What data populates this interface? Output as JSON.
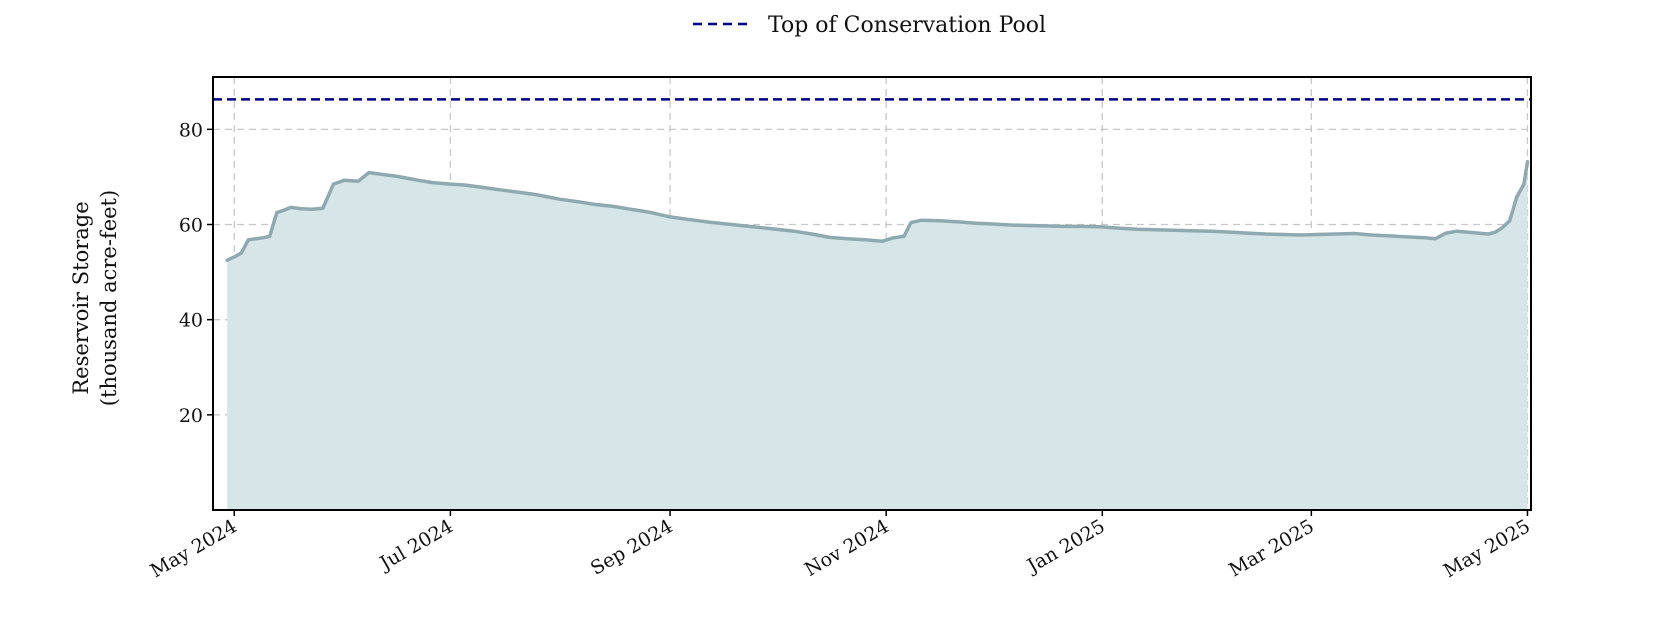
{
  "chart_data": {
    "type": "area",
    "title": "",
    "xlabel": "",
    "ylabel": "Reservoir Storage (thousand acre-feet)",
    "ylabel_lines": [
      "Reservoir Storage",
      "(thousand acre-feet)"
    ],
    "xlim": [
      "2024-04-25",
      "2025-05-02"
    ],
    "ylim": [
      0,
      91
    ],
    "yticks": [
      20,
      40,
      60,
      80
    ],
    "xticks": [
      {
        "date": "2024-05-01",
        "label": "May 2024"
      },
      {
        "date": "2024-07-01",
        "label": "Jul 2024"
      },
      {
        "date": "2024-09-01",
        "label": "Sep 2024"
      },
      {
        "date": "2024-11-01",
        "label": "Nov 2024"
      },
      {
        "date": "2025-01-01",
        "label": "Jan 2025"
      },
      {
        "date": "2025-03-01",
        "label": "Mar 2025"
      },
      {
        "date": "2025-05-01",
        "label": "May 2025"
      }
    ],
    "grid": true,
    "legend_position": "top-center",
    "series": [
      {
        "name": "",
        "type": "area",
        "color": "#8fa9b0",
        "fill_color": "#d6e5e8",
        "x": [
          "2024-04-29",
          "2024-05-01",
          "2024-05-03",
          "2024-05-05",
          "2024-05-07",
          "2024-05-09",
          "2024-05-11",
          "2024-05-13",
          "2024-05-15",
          "2024-05-17",
          "2024-05-20",
          "2024-05-23",
          "2024-05-26",
          "2024-05-29",
          "2024-06-01",
          "2024-06-03",
          "2024-06-05",
          "2024-06-08",
          "2024-06-12",
          "2024-06-16",
          "2024-06-19",
          "2024-06-22",
          "2024-06-26",
          "2024-07-01",
          "2024-07-05",
          "2024-07-10",
          "2024-07-15",
          "2024-07-20",
          "2024-07-25",
          "2024-08-01",
          "2024-08-06",
          "2024-08-11",
          "2024-08-16",
          "2024-08-21",
          "2024-08-26",
          "2024-09-01",
          "2024-09-06",
          "2024-09-11",
          "2024-09-16",
          "2024-09-21",
          "2024-09-26",
          "2024-10-01",
          "2024-10-06",
          "2024-10-11",
          "2024-10-16",
          "2024-10-21",
          "2024-10-26",
          "2024-10-31",
          "2024-11-03",
          "2024-11-06",
          "2024-11-08",
          "2024-11-11",
          "2024-11-16",
          "2024-11-21",
          "2024-11-26",
          "2024-12-01",
          "2024-12-06",
          "2024-12-11",
          "2024-12-16",
          "2024-12-21",
          "2024-12-26",
          "2025-01-01",
          "2025-01-06",
          "2025-01-11",
          "2025-01-16",
          "2025-01-21",
          "2025-01-26",
          "2025-02-01",
          "2025-02-06",
          "2025-02-11",
          "2025-02-16",
          "2025-02-21",
          "2025-02-26",
          "2025-03-03",
          "2025-03-08",
          "2025-03-13",
          "2025-03-18",
          "2025-03-23",
          "2025-03-28",
          "2025-04-02",
          "2025-04-05",
          "2025-04-08",
          "2025-04-11",
          "2025-04-14",
          "2025-04-17",
          "2025-04-20",
          "2025-04-22",
          "2025-04-24",
          "2025-04-26",
          "2025-04-28",
          "2025-04-30",
          "2025-05-01"
        ],
        "values": [
          52.5,
          53.2,
          54.0,
          56.8,
          57.0,
          57.2,
          57.5,
          62.5,
          63.0,
          63.6,
          63.3,
          63.2,
          63.4,
          68.5,
          69.3,
          69.2,
          69.1,
          70.9,
          70.5,
          70.1,
          69.7,
          69.3,
          68.8,
          68.5,
          68.3,
          67.8,
          67.3,
          66.8,
          66.3,
          65.3,
          64.8,
          64.2,
          63.8,
          63.2,
          62.6,
          61.6,
          61.1,
          60.6,
          60.2,
          59.8,
          59.4,
          59.0,
          58.6,
          58.0,
          57.3,
          57.0,
          56.8,
          56.5,
          57.2,
          57.5,
          60.4,
          60.9,
          60.8,
          60.6,
          60.3,
          60.1,
          59.9,
          59.8,
          59.7,
          59.6,
          59.6,
          59.5,
          59.2,
          59.0,
          58.9,
          58.8,
          58.7,
          58.6,
          58.4,
          58.2,
          58.0,
          57.9,
          57.8,
          57.9,
          58.0,
          58.1,
          57.8,
          57.6,
          57.4,
          57.2,
          57.0,
          58.2,
          58.6,
          58.4,
          58.2,
          58.0,
          58.4,
          59.4,
          60.8,
          65.8,
          68.5,
          73.2
        ]
      },
      {
        "name": "Top of Conservation Pool",
        "type": "line",
        "color": "#00008b",
        "dashed": true,
        "x": [
          "2024-04-25",
          "2025-05-02"
        ],
        "values": [
          86.3,
          86.3
        ]
      }
    ]
  }
}
